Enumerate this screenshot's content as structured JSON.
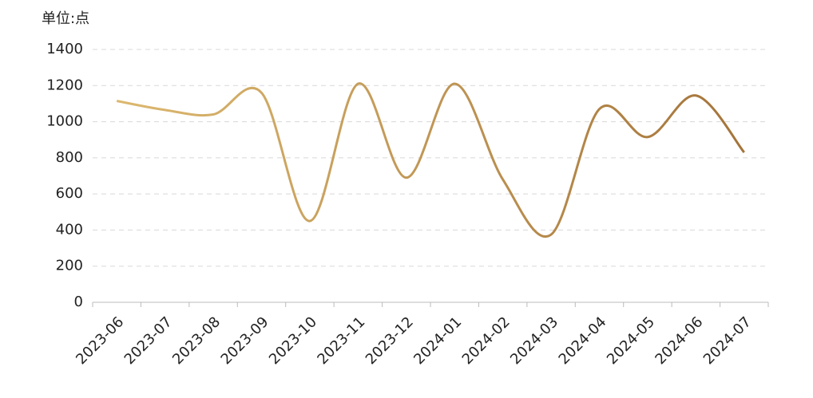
{
  "chart_data": {
    "type": "line",
    "y_unit_label": "单位:点",
    "categories": [
      "2023-06",
      "2023-07",
      "2023-08",
      "2023-09",
      "2023-10",
      "2023-11",
      "2023-12",
      "2024-01",
      "2024-02",
      "2024-03",
      "2024-04",
      "2024-05",
      "2024-06",
      "2024-07"
    ],
    "values": [
      1115,
      1065,
      1040,
      1160,
      450,
      1210,
      690,
      1210,
      680,
      375,
      1070,
      915,
      1145,
      830
    ],
    "line_gradient": [
      "#dcb86f",
      "#a4743a"
    ],
    "smooth": true,
    "ylim": [
      0,
      1400
    ],
    "yticks": [
      0,
      200,
      400,
      600,
      800,
      1000,
      1200,
      1400
    ],
    "grid": true
  }
}
